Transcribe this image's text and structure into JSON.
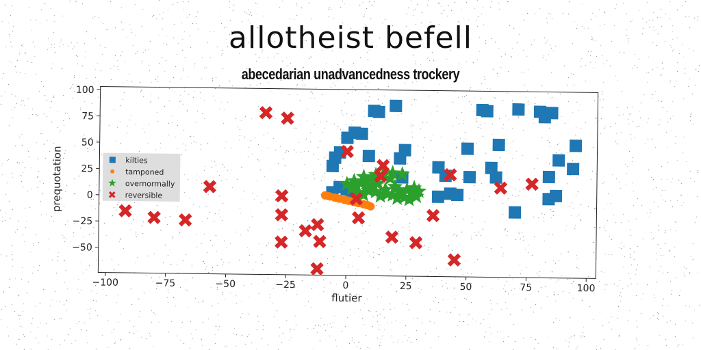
{
  "title": "allotheist befell",
  "subtitle": "abecedarian unadvancedness trockery",
  "chart_data": {
    "type": "scatter",
    "xlabel": "flutier",
    "ylabel": "prequotation",
    "xlim": [
      -103,
      104
    ],
    "ylim": [
      -74,
      103
    ],
    "xticks": [
      -100,
      -75,
      -50,
      -25,
      0,
      25,
      50,
      75,
      100
    ],
    "yticks": [
      -50,
      -25,
      0,
      25,
      50,
      75,
      100
    ],
    "xtick_labels": [
      "−100",
      "−75",
      "−50",
      "−25",
      "0",
      "25",
      "50",
      "75",
      "100"
    ],
    "ytick_labels": [
      "−50",
      "−25",
      "0",
      "25",
      "50",
      "75",
      "100"
    ],
    "legend_position": "center-left",
    "grid": false,
    "series": [
      {
        "name": "kilties",
        "marker": "square",
        "color": "#1f77b4",
        "points": [
          [
            -6,
            30
          ],
          [
            -5,
            38
          ],
          [
            -3,
            43
          ],
          [
            0,
            57
          ],
          [
            0,
            8
          ],
          [
            2,
            5
          ],
          [
            3,
            62
          ],
          [
            6,
            61
          ],
          [
            9,
            40
          ],
          [
            11,
            83
          ],
          [
            13,
            82
          ],
          [
            20,
            88
          ],
          [
            22,
            38
          ],
          [
            24,
            46
          ],
          [
            23,
            20
          ],
          [
            38,
            30
          ],
          [
            41,
            22
          ],
          [
            43,
            5
          ],
          [
            38,
            2
          ],
          [
            46,
            4
          ],
          [
            50,
            48
          ],
          [
            51,
            21
          ],
          [
            56,
            85
          ],
          [
            58,
            84
          ],
          [
            60,
            30
          ],
          [
            62,
            21
          ],
          [
            63,
            52
          ],
          [
            71,
            86
          ],
          [
            70,
            -12
          ],
          [
            80,
            84
          ],
          [
            82,
            79
          ],
          [
            84,
            1
          ],
          [
            85,
            83
          ],
          [
            84,
            22
          ],
          [
            87,
            4
          ],
          [
            88,
            38
          ],
          [
            95,
            52
          ],
          [
            94,
            30
          ],
          [
            -3,
            10
          ],
          [
            -6,
            5
          ]
        ]
      },
      {
        "name": "tamponed",
        "marker": "circle",
        "color": "#ff7f0e",
        "points": [
          [
            -9,
            2
          ],
          [
            -7,
            1
          ],
          [
            -5,
            0
          ],
          [
            -3,
            -1
          ],
          [
            -1,
            -2
          ],
          [
            1,
            -3
          ],
          [
            3,
            -4
          ],
          [
            5,
            -5
          ],
          [
            7,
            -6
          ],
          [
            9,
            -7
          ],
          [
            10,
            -8
          ],
          [
            -8,
            1.5
          ],
          [
            -4,
            -0.5
          ],
          [
            0,
            -2.5
          ],
          [
            4,
            -4.5
          ],
          [
            8,
            -6.5
          ]
        ]
      },
      {
        "name": "overnormally",
        "marker": "star",
        "color": "#2ca02c",
        "points": [
          [
            0,
            13
          ],
          [
            2,
            9
          ],
          [
            4,
            11
          ],
          [
            5,
            5
          ],
          [
            6,
            15
          ],
          [
            7,
            20
          ],
          [
            8,
            10
          ],
          [
            9,
            7
          ],
          [
            10,
            18
          ],
          [
            11,
            12
          ],
          [
            12,
            6
          ],
          [
            13,
            14
          ],
          [
            14,
            2
          ],
          [
            15,
            22
          ],
          [
            16,
            8
          ],
          [
            17,
            4
          ],
          [
            18,
            19
          ],
          [
            19,
            3
          ],
          [
            20,
            11
          ],
          [
            21,
            0
          ],
          [
            22,
            6
          ],
          [
            23,
            23
          ],
          [
            24,
            1
          ],
          [
            25,
            8
          ],
          [
            26,
            -1
          ],
          [
            27,
            5
          ],
          [
            28,
            10
          ],
          [
            29,
            2
          ],
          [
            30,
            7
          ],
          [
            3,
            16
          ],
          [
            7,
            3
          ],
          [
            12,
            22
          ],
          [
            19,
            24
          ]
        ]
      },
      {
        "name": "reversible",
        "marker": "x",
        "color": "#d62728",
        "points": [
          [
            -92,
            -15
          ],
          [
            -80,
            -21
          ],
          [
            -67,
            -23
          ],
          [
            -57,
            9
          ],
          [
            -34,
            80
          ],
          [
            -25,
            75
          ],
          [
            -27,
            1
          ],
          [
            -27,
            -17
          ],
          [
            -27,
            -43
          ],
          [
            -17,
            -32
          ],
          [
            -12,
            -26
          ],
          [
            -11,
            -42
          ],
          [
            -12,
            -68
          ],
          [
            0,
            44
          ],
          [
            4,
            -1
          ],
          [
            5,
            -19
          ],
          [
            14,
            21
          ],
          [
            15,
            31
          ],
          [
            19,
            -37
          ],
          [
            29,
            -42
          ],
          [
            36,
            -16
          ],
          [
            43,
            23
          ],
          [
            45,
            -58
          ],
          [
            64,
            11
          ],
          [
            77,
            15
          ]
        ]
      }
    ]
  }
}
